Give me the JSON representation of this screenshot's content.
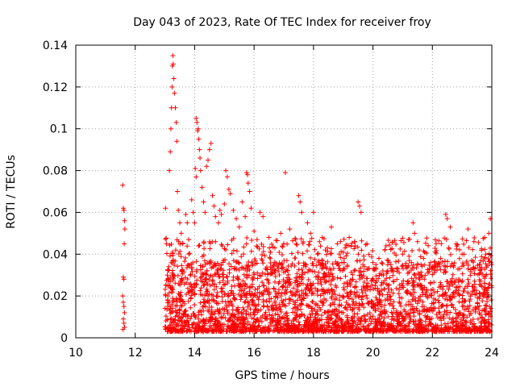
{
  "chart_data": {
    "type": "scatter",
    "title": "Day 043 of 2023, Rate Of TEC Index for receiver froy",
    "xlabel": "GPS time / hours",
    "ylabel": "ROTI / TECUs",
    "xlim": [
      10,
      24
    ],
    "ylim": [
      0,
      0.14
    ],
    "x_ticks": [
      10,
      12,
      14,
      16,
      18,
      20,
      22,
      24
    ],
    "y_ticks": [
      0,
      0.02,
      0.04,
      0.06,
      0.08,
      0.1,
      0.12,
      0.14
    ],
    "x_tick_labels": [
      "10",
      "12",
      "14",
      "16",
      "18",
      "20",
      "22",
      "24"
    ],
    "y_tick_labels": [
      "0",
      "0.02",
      "0.04",
      "0.06",
      "0.08",
      "0.1",
      "0.12",
      "0.14"
    ],
    "grid": true,
    "grid_style": "dotted",
    "marker": "+",
    "color": "#ff0000",
    "series": [
      {
        "points": [
          [
            11.58,
            0.073
          ],
          [
            11.6,
            0.062
          ],
          [
            11.62,
            0.061
          ],
          [
            11.64,
            0.056
          ],
          [
            11.65,
            0.052
          ],
          [
            11.63,
            0.045
          ],
          [
            11.6,
            0.029
          ],
          [
            11.62,
            0.028
          ],
          [
            11.58,
            0.02
          ],
          [
            11.6,
            0.017
          ],
          [
            11.62,
            0.015
          ],
          [
            11.64,
            0.012
          ],
          [
            11.6,
            0.009
          ],
          [
            11.62,
            0.007
          ],
          [
            11.64,
            0.005
          ],
          [
            11.59,
            0.004
          ],
          [
            13.02,
            0.062
          ],
          [
            13.05,
            0.045
          ],
          [
            13.08,
            0.03
          ],
          [
            13.1,
            0.02
          ],
          [
            13.15,
            0.08
          ],
          [
            13.18,
            0.089
          ],
          [
            13.2,
            0.1
          ],
          [
            13.22,
            0.11
          ],
          [
            13.24,
            0.12
          ],
          [
            13.25,
            0.13
          ],
          [
            13.27,
            0.135
          ],
          [
            13.28,
            0.131
          ],
          [
            13.3,
            0.124
          ],
          [
            13.32,
            0.117
          ],
          [
            13.35,
            0.11
          ],
          [
            13.38,
            0.103
          ],
          [
            13.4,
            0.094
          ],
          [
            13.42,
            0.07
          ],
          [
            13.45,
            0.061
          ],
          [
            13.5,
            0.055
          ],
          [
            13.55,
            0.05
          ],
          [
            13.6,
            0.045
          ],
          [
            13.7,
            0.059
          ],
          [
            13.75,
            0.055
          ],
          [
            13.8,
            0.047
          ],
          [
            13.9,
            0.066
          ],
          [
            13.95,
            0.06
          ],
          [
            14.0,
            0.055
          ],
          [
            14.05,
            0.105
          ],
          [
            14.08,
            0.103
          ],
          [
            14.1,
            0.099
          ],
          [
            14.12,
            0.1
          ],
          [
            14.14,
            0.095
          ],
          [
            14.16,
            0.09
          ],
          [
            14.18,
            0.086
          ],
          [
            14.2,
            0.08
          ],
          [
            14.02,
            0.081
          ],
          [
            14.05,
            0.077
          ],
          [
            14.25,
            0.072
          ],
          [
            14.3,
            0.065
          ],
          [
            14.35,
            0.06
          ],
          [
            14.4,
            0.082
          ],
          [
            14.45,
            0.085
          ],
          [
            14.5,
            0.09
          ],
          [
            14.55,
            0.093
          ],
          [
            14.6,
            0.068
          ],
          [
            14.65,
            0.063
          ],
          [
            14.7,
            0.058
          ],
          [
            14.8,
            0.055
          ],
          [
            14.85,
            0.061
          ],
          [
            14.9,
            0.059
          ],
          [
            15.0,
            0.064
          ],
          [
            15.05,
            0.08
          ],
          [
            15.1,
            0.077
          ],
          [
            15.15,
            0.071
          ],
          [
            15.2,
            0.069
          ],
          [
            15.3,
            0.061
          ],
          [
            15.4,
            0.057
          ],
          [
            15.5,
            0.053
          ],
          [
            15.6,
            0.065
          ],
          [
            15.7,
            0.058
          ],
          [
            15.75,
            0.079
          ],
          [
            15.78,
            0.078
          ],
          [
            15.8,
            0.074
          ],
          [
            15.85,
            0.07
          ],
          [
            15.9,
            0.062
          ],
          [
            16.0,
            0.051
          ],
          [
            16.1,
            0.047
          ],
          [
            16.2,
            0.06
          ],
          [
            16.3,
            0.058
          ],
          [
            16.5,
            0.048
          ],
          [
            16.7,
            0.043
          ],
          [
            16.9,
            0.05
          ],
          [
            17.05,
            0.079
          ],
          [
            17.2,
            0.052
          ],
          [
            17.4,
            0.047
          ],
          [
            17.5,
            0.068
          ],
          [
            17.55,
            0.065
          ],
          [
            17.6,
            0.06
          ],
          [
            17.8,
            0.055
          ],
          [
            17.9,
            0.05
          ],
          [
            18.0,
            0.06
          ],
          [
            18.2,
            0.046
          ],
          [
            18.4,
            0.042
          ],
          [
            18.6,
            0.053
          ],
          [
            18.8,
            0.045
          ],
          [
            19.0,
            0.041
          ],
          [
            19.2,
            0.048
          ],
          [
            19.4,
            0.044
          ],
          [
            19.5,
            0.065
          ],
          [
            19.55,
            0.063
          ],
          [
            19.6,
            0.06
          ],
          [
            19.8,
            0.045
          ],
          [
            20.0,
            0.036
          ],
          [
            20.2,
            0.038
          ],
          [
            20.4,
            0.042
          ],
          [
            20.6,
            0.035
          ],
          [
            20.8,
            0.033
          ],
          [
            21.0,
            0.04
          ],
          [
            21.2,
            0.047
          ],
          [
            21.35,
            0.055
          ],
          [
            21.4,
            0.05
          ],
          [
            21.5,
            0.046
          ],
          [
            21.7,
            0.038
          ],
          [
            21.9,
            0.033
          ],
          [
            22.1,
            0.041
          ],
          [
            22.3,
            0.045
          ],
          [
            22.45,
            0.059
          ],
          [
            22.5,
            0.057
          ],
          [
            22.6,
            0.053
          ],
          [
            22.8,
            0.045
          ],
          [
            23.0,
            0.04
          ],
          [
            23.2,
            0.052
          ],
          [
            23.4,
            0.046
          ],
          [
            23.6,
            0.035
          ],
          [
            23.8,
            0.04
          ],
          [
            23.9,
            0.05
          ],
          [
            23.95,
            0.057
          ]
        ],
        "band_density_note": ""
      }
    ]
  }
}
